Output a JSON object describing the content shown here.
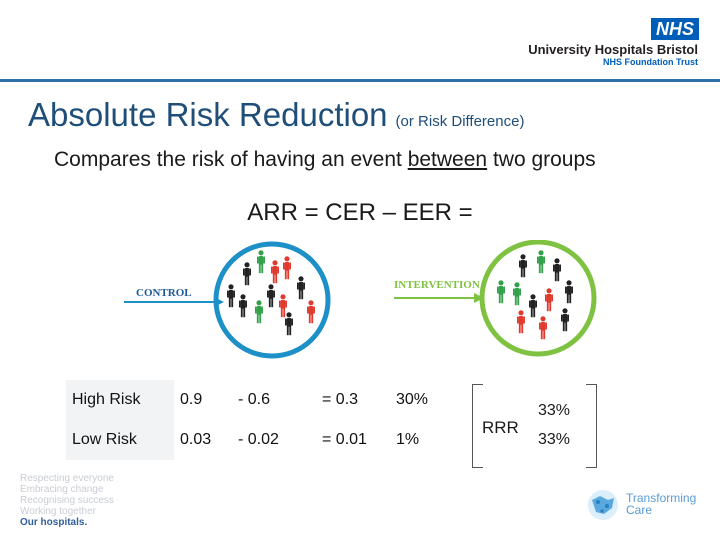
{
  "header": {
    "nhs_badge": "NHS",
    "org_name": "University Hospitals Bristol",
    "org_sub": "NHS Foundation Trust"
  },
  "title": {
    "main": "Absolute Risk Reduction",
    "sub": "(or Risk Difference)"
  },
  "subtitle": {
    "before": "Compares the risk of having an event ",
    "emph": "between",
    "after": " two groups"
  },
  "formula": "ARR = CER – EER =",
  "diagram": {
    "control_label": "CONTROL",
    "intervention_label": "INTERVENTION",
    "colors": {
      "control_circle": "#1e90c8",
      "intervention_circle": "#7fc241",
      "red": "#e03a2f",
      "green": "#33a14a",
      "black": "#222222"
    }
  },
  "table": {
    "rows": [
      {
        "label": "High Risk",
        "cer": "0.9",
        "minus_eer": "-  0.6",
        "eq_arr": "=  0.3",
        "pct": "30%"
      },
      {
        "label": "Low Risk",
        "cer": "0.03",
        "minus_eer": "-  0.02",
        "eq_arr": "=  0.01",
        "pct": "1%"
      }
    ]
  },
  "rrr": {
    "label": "RRR",
    "values": [
      "33%",
      "33%"
    ]
  },
  "footer": {
    "values": [
      "Respecting everyone",
      "Embracing change",
      "Recognising success",
      "Working together"
    ],
    "values_strong": "Our hospitals.",
    "tc_line1": "Transforming",
    "tc_line2": "Care"
  }
}
